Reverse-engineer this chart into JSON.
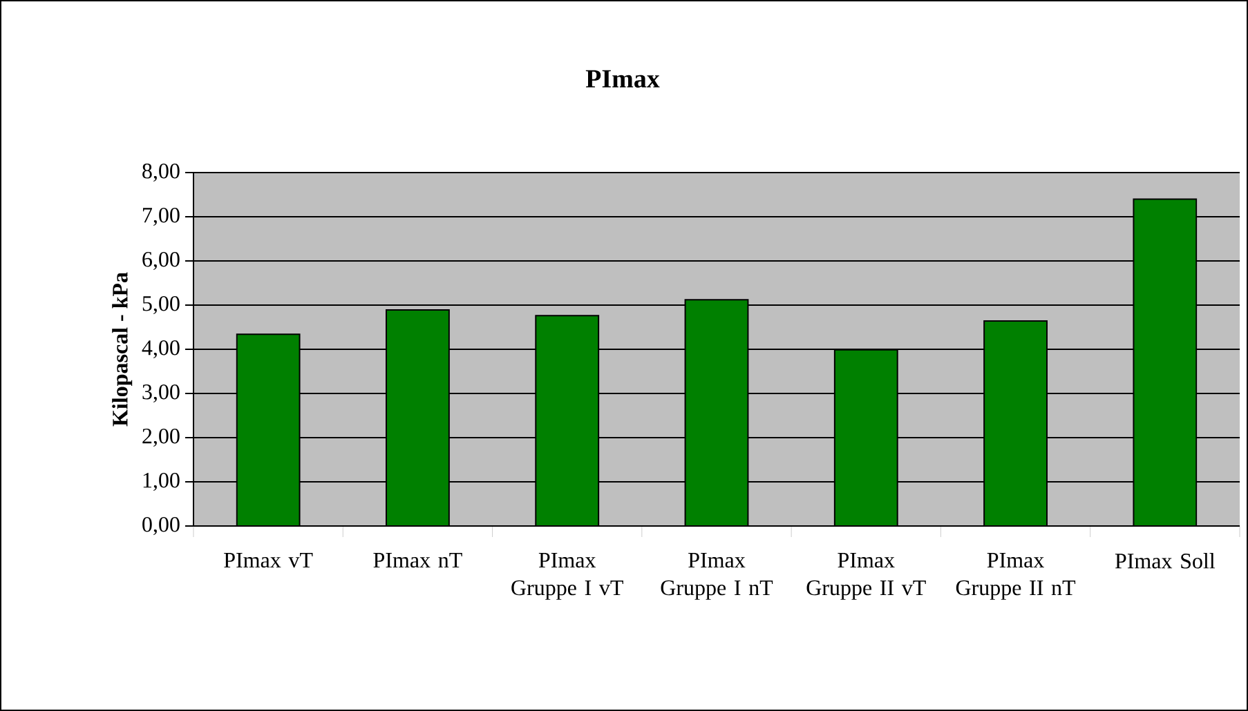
{
  "chart_data": {
    "type": "bar",
    "title": "PImax",
    "ylabel": "Kilopascal - kPa",
    "categories": [
      "PImax vT",
      "PImax nT",
      "PImax Gruppe I vT",
      "PImax Gruppe I nT",
      "PImax Gruppe II vT",
      "PImax Gruppe II nT",
      "PImax Soll"
    ],
    "values": [
      4.34,
      4.89,
      4.76,
      5.12,
      3.99,
      4.64,
      7.4
    ],
    "color": "#008000",
    "ylim": [
      0,
      8
    ],
    "yticks": [
      {
        "value": 0,
        "label": "0,00"
      },
      {
        "value": 1,
        "label": "1,00"
      },
      {
        "value": 2,
        "label": "2,00"
      },
      {
        "value": 3,
        "label": "3,00"
      },
      {
        "value": 4,
        "label": "4,00"
      },
      {
        "value": 5,
        "label": "5,00"
      },
      {
        "value": 6,
        "label": "6,00"
      },
      {
        "value": 7,
        "label": "7,00"
      },
      {
        "value": 8,
        "label": "8,00"
      }
    ],
    "grid": "y"
  }
}
